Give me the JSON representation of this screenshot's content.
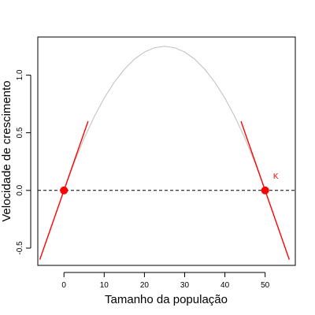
{
  "chart_data": {
    "type": "line",
    "xlabel": "Tamanho da população",
    "ylabel": "Velocidade de crescimento",
    "xlim": [
      -6.5,
      57.5
    ],
    "ylim": [
      -0.65,
      1.33
    ],
    "x_ticks": [
      "0",
      "10",
      "20",
      "30",
      "40",
      "50"
    ],
    "y_ticks": [
      "-0.5",
      "0.0",
      "0.5",
      "1.0"
    ],
    "grid": false,
    "legend": "none",
    "series": [
      {
        "kind": "curve",
        "color": "#bebebe",
        "x": [
          0,
          2.5,
          5,
          7.5,
          10,
          12.5,
          15,
          17.5,
          20,
          22.5,
          25,
          27.5,
          30,
          32.5,
          35,
          37.5,
          40,
          42.5,
          45,
          47.5,
          50
        ],
        "y": [
          0,
          0.2375,
          0.45,
          0.6375,
          0.8,
          0.9375,
          1.05,
          1.1375,
          1.2,
          1.2375,
          1.25,
          1.2375,
          1.2,
          1.1375,
          1.05,
          0.9375,
          0.8,
          0.6375,
          0.45,
          0.2375,
          0
        ]
      },
      {
        "kind": "tangent",
        "color": "#ff0000",
        "x": [
          -6,
          6
        ],
        "y": [
          -0.6,
          0.6
        ]
      },
      {
        "kind": "tangent",
        "color": "#ff0000",
        "x": [
          44,
          56
        ],
        "y": [
          0.6,
          -0.6
        ]
      },
      {
        "kind": "reference",
        "color": "#000000",
        "dash": true,
        "y_value": 0
      }
    ],
    "points": [
      {
        "x": 0,
        "y": 0,
        "color": "#ff0000"
      },
      {
        "x": 50,
        "y": 0,
        "color": "#ff0000"
      }
    ],
    "annotations": [
      {
        "text": "K",
        "x": 52,
        "y": 0.1,
        "color": "#ff0000"
      }
    ]
  }
}
